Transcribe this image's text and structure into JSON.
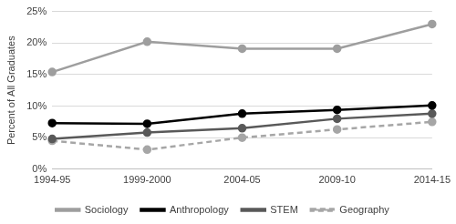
{
  "chart_data": {
    "type": "line",
    "y_label": "Percent of All Graduates",
    "categories": [
      "1994-95",
      "1999-2000",
      "2004-05",
      "2009-10",
      "2014-15"
    ],
    "series": [
      {
        "name": "Sociology",
        "color": "#9e9e9e",
        "marker": "circle",
        "line_style": "solid",
        "values": [
          15.4,
          20.2,
          19.1,
          19.1,
          23.0
        ]
      },
      {
        "name": "Anthropology",
        "color": "#000000",
        "marker": "circle",
        "line_style": "solid",
        "values": [
          7.3,
          7.2,
          8.8,
          9.4,
          10.1
        ]
      },
      {
        "name": "STEM",
        "color": "#595959",
        "marker": "circle",
        "line_style": "solid",
        "values": [
          4.8,
          5.8,
          6.5,
          8.0,
          8.8
        ]
      },
      {
        "name": "Geography",
        "color": "#a6a6a6",
        "marker": "circle",
        "line_style": "dashed",
        "values": [
          4.5,
          3.1,
          5.0,
          6.3,
          7.5
        ]
      }
    ],
    "ylim": [
      0,
      25
    ],
    "yticks": [
      {
        "value": 0,
        "label": "0%"
      },
      {
        "value": 5,
        "label": "5%"
      },
      {
        "value": 10,
        "label": "10%"
      },
      {
        "value": 15,
        "label": "15%"
      },
      {
        "value": 20,
        "label": "20%"
      },
      {
        "value": 25,
        "label": "25%"
      }
    ],
    "grid": true,
    "legend": "bottom"
  }
}
